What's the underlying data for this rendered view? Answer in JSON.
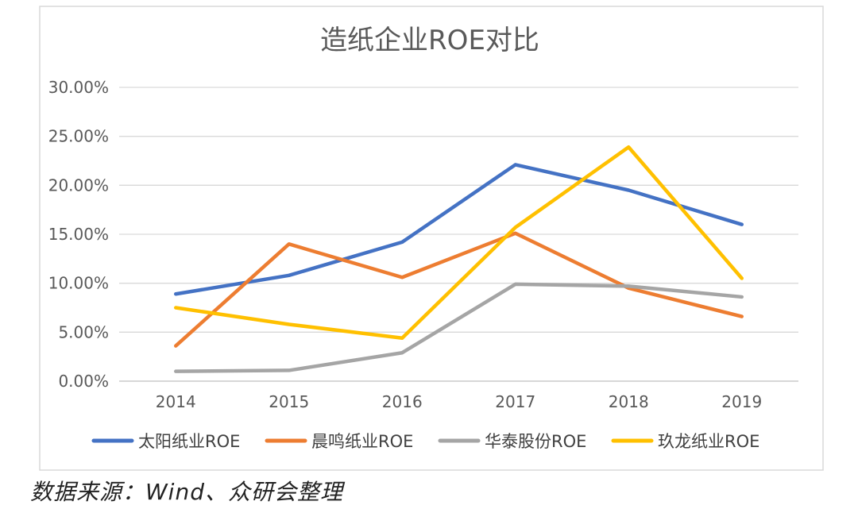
{
  "chart_data": {
    "type": "line",
    "title": "造纸企业ROE对比",
    "categories": [
      "2014",
      "2015",
      "2016",
      "2017",
      "2018",
      "2019"
    ],
    "ylim": [
      0,
      30
    ],
    "y_ticks": [
      "0.00%",
      "5.00%",
      "10.00%",
      "15.00%",
      "20.00%",
      "25.00%",
      "30.00%"
    ],
    "y_tick_values": [
      0,
      5,
      10,
      15,
      20,
      25,
      30
    ],
    "grid": true,
    "legend_position": "bottom",
    "series": [
      {
        "name": "太阳纸业ROE",
        "color": "#4472C4",
        "values": [
          8.9,
          10.8,
          14.2,
          22.1,
          19.5,
          16.0
        ]
      },
      {
        "name": "晨鸣纸业ROE",
        "color": "#ED7D31",
        "values": [
          3.6,
          14.0,
          10.6,
          15.1,
          9.5,
          6.6
        ]
      },
      {
        "name": "华泰股份ROE",
        "color": "#A5A5A5",
        "values": [
          1.0,
          1.1,
          2.9,
          9.9,
          9.7,
          8.6
        ]
      },
      {
        "name": "玖龙纸业ROE",
        "color": "#FFC000",
        "values": [
          7.5,
          5.8,
          4.4,
          15.7,
          23.9,
          10.5
        ]
      }
    ]
  },
  "source_note": "数据来源：Wind、众研会整理"
}
